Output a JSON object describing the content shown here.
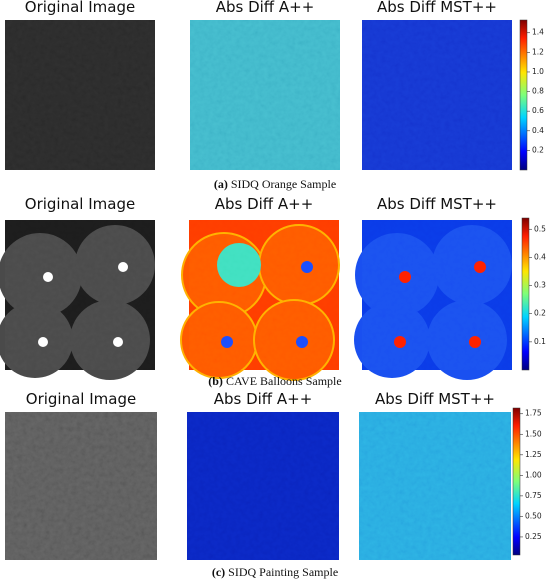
{
  "figure": {
    "rows": [
      {
        "panels": [
          "Original Image",
          "Abs Diff A++",
          "Abs Diff MST++"
        ],
        "caption": {
          "label": "(a)",
          "text": "SIDQ Orange Sample"
        },
        "colorbar": {
          "lim": [
            0,
            1.53
          ],
          "ticks": [
            0.2,
            0.4,
            0.6,
            0.8,
            {
              "value": 1,
              "label": "1.0"
            },
            1.2,
            1.4
          ]
        }
      },
      {
        "panels": [
          "Original Image",
          "Abs Diff A++",
          "Abs Diff MST++"
        ],
        "caption": {
          "label": "(b)",
          "text": "CAVE Balloons Sample"
        },
        "colorbar": {
          "lim": [
            0,
            0.54
          ],
          "ticks": [
            0.1,
            0.2,
            0.3,
            0.4,
            0.5
          ]
        }
      },
      {
        "panels": [
          "Original Image",
          "Abs Diff A++",
          "Abs Diff MST++"
        ],
        "caption": {
          "label": "(c)",
          "text": "SIDQ Painting Sample"
        },
        "colorbar": {
          "lim": [
            0.03,
            1.82
          ],
          "ticks": [
            0.25,
            {
              "value": 0.5,
              "label": "0.50"
            },
            0.75,
            {
              "value": 1,
              "label": "1.00"
            },
            1.25,
            {
              "value": 1.5,
              "label": "1.50"
            },
            1.75
          ]
        }
      }
    ]
  }
}
